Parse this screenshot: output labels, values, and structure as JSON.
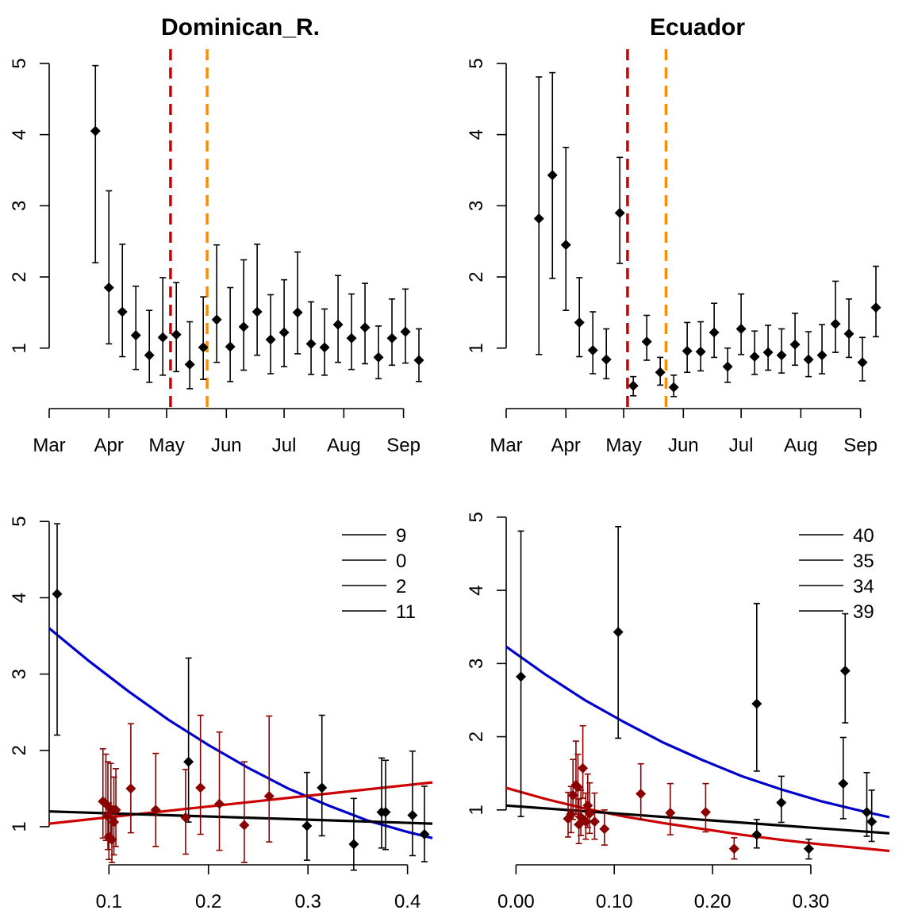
{
  "chart_data": [
    {
      "type": "scatter",
      "title": "Dominican_R.",
      "xlabel": "",
      "ylabel": "",
      "x_axis": "date",
      "xlim": [
        "2020-03-01",
        "2020-09-16"
      ],
      "ylim": [
        0.15,
        5.2
      ],
      "xticks": [
        {
          "label": "Mar",
          "x": "2020-03-01"
        },
        {
          "label": "Apr",
          "x": "2020-04-01"
        },
        {
          "label": "May",
          "x": "2020-05-01"
        },
        {
          "label": "Jun",
          "x": "2020-06-01"
        },
        {
          "label": "Jul",
          "x": "2020-07-01"
        },
        {
          "label": "Aug",
          "x": "2020-08-01"
        },
        {
          "label": "Sep",
          "x": "2020-09-01"
        }
      ],
      "yticks": [
        1,
        2,
        3,
        4,
        5
      ],
      "vlines": [
        {
          "x": "2020-05-03",
          "color": "#cc0000"
        },
        {
          "x": "2020-05-22",
          "color": "#ff8c00"
        }
      ],
      "series": [
        {
          "color": "#000000",
          "points": [
            {
              "x": "2020-03-25",
              "y": 4.05,
              "lo": 2.2,
              "hi": 4.97
            },
            {
              "x": "2020-04-01",
              "y": 1.85,
              "lo": 1.06,
              "hi": 3.21
            },
            {
              "x": "2020-04-08",
              "y": 1.51,
              "lo": 0.88,
              "hi": 2.46
            },
            {
              "x": "2020-04-15",
              "y": 1.18,
              "lo": 0.7,
              "hi": 1.87
            },
            {
              "x": "2020-04-22",
              "y": 0.9,
              "lo": 0.52,
              "hi": 1.53
            },
            {
              "x": "2020-04-29",
              "y": 1.15,
              "lo": 0.62,
              "hi": 1.99
            },
            {
              "x": "2020-05-06",
              "y": 1.19,
              "lo": 0.67,
              "hi": 1.92
            },
            {
              "x": "2020-05-13",
              "y": 0.77,
              "lo": 0.43,
              "hi": 1.37
            },
            {
              "x": "2020-05-20",
              "y": 1.01,
              "lo": 0.56,
              "hi": 1.72
            },
            {
              "x": "2020-05-27",
              "y": 1.4,
              "lo": 0.8,
              "hi": 2.45
            },
            {
              "x": "2020-06-03",
              "y": 1.02,
              "lo": 0.53,
              "hi": 1.85
            },
            {
              "x": "2020-06-10",
              "y": 1.3,
              "lo": 0.69,
              "hi": 2.24
            },
            {
              "x": "2020-06-17",
              "y": 1.51,
              "lo": 0.9,
              "hi": 2.46
            },
            {
              "x": "2020-06-24",
              "y": 1.12,
              "lo": 0.64,
              "hi": 1.75
            },
            {
              "x": "2020-07-01",
              "y": 1.22,
              "lo": 0.74,
              "hi": 1.96
            },
            {
              "x": "2020-07-08",
              "y": 1.5,
              "lo": 0.92,
              "hi": 2.35
            },
            {
              "x": "2020-07-15",
              "y": 1.06,
              "lo": 0.63,
              "hi": 1.65
            },
            {
              "x": "2020-07-22",
              "y": 1.01,
              "lo": 0.62,
              "hi": 1.55
            },
            {
              "x": "2020-07-29",
              "y": 1.33,
              "lo": 0.8,
              "hi": 2.02
            },
            {
              "x": "2020-08-05",
              "y": 1.14,
              "lo": 0.7,
              "hi": 1.76
            },
            {
              "x": "2020-08-12",
              "y": 1.29,
              "lo": 0.78,
              "hi": 1.91
            },
            {
              "x": "2020-08-19",
              "y": 0.87,
              "lo": 0.57,
              "hi": 1.31
            },
            {
              "x": "2020-08-26",
              "y": 1.14,
              "lo": 0.76,
              "hi": 1.69
            },
            {
              "x": "2020-09-02",
              "y": 1.23,
              "lo": 0.79,
              "hi": 1.83
            },
            {
              "x": "2020-09-09",
              "y": 0.83,
              "lo": 0.53,
              "hi": 1.27
            }
          ]
        }
      ]
    },
    {
      "type": "scatter",
      "title": "Ecuador",
      "xlabel": "",
      "ylabel": "",
      "x_axis": "date",
      "xlim": [
        "2020-03-01",
        "2020-09-16"
      ],
      "ylim": [
        0.15,
        5.2
      ],
      "xticks": [
        {
          "label": "Mar",
          "x": "2020-03-01"
        },
        {
          "label": "Apr",
          "x": "2020-04-01"
        },
        {
          "label": "May",
          "x": "2020-05-01"
        },
        {
          "label": "Jun",
          "x": "2020-06-01"
        },
        {
          "label": "Jul",
          "x": "2020-07-01"
        },
        {
          "label": "Aug",
          "x": "2020-08-01"
        },
        {
          "label": "Sep",
          "x": "2020-09-01"
        }
      ],
      "yticks": [
        1,
        2,
        3,
        4,
        5
      ],
      "vlines": [
        {
          "x": "2020-05-03",
          "color": "#cc0000"
        },
        {
          "x": "2020-05-23",
          "color": "#ff8c00"
        }
      ],
      "series": [
        {
          "color": "#000000",
          "points": [
            {
              "x": "2020-03-18",
              "y": 2.82,
              "lo": 0.91,
              "hi": 4.81
            },
            {
              "x": "2020-03-25",
              "y": 3.43,
              "lo": 1.98,
              "hi": 4.87
            },
            {
              "x": "2020-04-01",
              "y": 2.45,
              "lo": 1.53,
              "hi": 3.82
            },
            {
              "x": "2020-04-08",
              "y": 1.36,
              "lo": 0.88,
              "hi": 1.99
            },
            {
              "x": "2020-04-15",
              "y": 0.97,
              "lo": 0.64,
              "hi": 1.51
            },
            {
              "x": "2020-04-22",
              "y": 0.84,
              "lo": 0.57,
              "hi": 1.27
            },
            {
              "x": "2020-04-29",
              "y": 2.9,
              "lo": 2.19,
              "hi": 3.68
            },
            {
              "x": "2020-05-06",
              "y": 0.47,
              "lo": 0.33,
              "hi": 0.6
            },
            {
              "x": "2020-05-13",
              "y": 1.09,
              "lo": 0.83,
              "hi": 1.46
            },
            {
              "x": "2020-05-20",
              "y": 0.66,
              "lo": 0.48,
              "hi": 0.87
            },
            {
              "x": "2020-05-27",
              "y": 0.45,
              "lo": 0.32,
              "hi": 0.62
            },
            {
              "x": "2020-06-03",
              "y": 0.96,
              "lo": 0.66,
              "hi": 1.36
            },
            {
              "x": "2020-06-10",
              "y": 0.95,
              "lo": 0.68,
              "hi": 1.37
            },
            {
              "x": "2020-06-17",
              "y": 1.22,
              "lo": 0.87,
              "hi": 1.63
            },
            {
              "x": "2020-06-24",
              "y": 0.74,
              "lo": 0.52,
              "hi": 1.0
            },
            {
              "x": "2020-07-01",
              "y": 1.27,
              "lo": 0.91,
              "hi": 1.76
            },
            {
              "x": "2020-07-08",
              "y": 0.88,
              "lo": 0.63,
              "hi": 1.24
            },
            {
              "x": "2020-07-15",
              "y": 0.94,
              "lo": 0.69,
              "hi": 1.32
            },
            {
              "x": "2020-07-22",
              "y": 0.9,
              "lo": 0.65,
              "hi": 1.27
            },
            {
              "x": "2020-07-29",
              "y": 1.05,
              "lo": 0.76,
              "hi": 1.49
            },
            {
              "x": "2020-08-05",
              "y": 0.84,
              "lo": 0.6,
              "hi": 1.23
            },
            {
              "x": "2020-08-12",
              "y": 0.9,
              "lo": 0.64,
              "hi": 1.33
            },
            {
              "x": "2020-08-19",
              "y": 1.34,
              "lo": 0.94,
              "hi": 1.94
            },
            {
              "x": "2020-08-26",
              "y": 1.2,
              "lo": 0.87,
              "hi": 1.69
            },
            {
              "x": "2020-09-02",
              "y": 0.8,
              "lo": 0.54,
              "hi": 1.15
            },
            {
              "x": "2020-09-09",
              "y": 1.57,
              "lo": 1.16,
              "hi": 2.15
            }
          ]
        }
      ]
    },
    {
      "type": "scatter",
      "title": "",
      "xlabel": "",
      "ylabel": "",
      "xlim": [
        0.04,
        0.425
      ],
      "ylim": [
        0.5,
        5.2
      ],
      "xticks": [
        0.1,
        0.2,
        0.3,
        0.4
      ],
      "xtick_decimals": 1,
      "yticks": [
        1,
        2,
        3,
        4,
        5
      ],
      "legend": {
        "position": "top-right",
        "labels": [
          "9",
          "0",
          "2",
          "11"
        ]
      },
      "series": [
        {
          "color": "#000000",
          "points": [
            {
              "x": 0.048,
              "y": 4.05,
              "lo": 2.2,
              "hi": 4.97
            },
            {
              "x": 0.18,
              "y": 1.85,
              "lo": 1.06,
              "hi": 3.21
            },
            {
              "x": 0.299,
              "y": 1.01,
              "lo": 0.56,
              "hi": 1.71
            },
            {
              "x": 0.314,
              "y": 1.51,
              "lo": 0.88,
              "hi": 2.46
            },
            {
              "x": 0.346,
              "y": 0.77,
              "lo": 0.43,
              "hi": 1.37
            },
            {
              "x": 0.374,
              "y": 1.19,
              "lo": 0.72,
              "hi": 1.9
            },
            {
              "x": 0.378,
              "y": 1.19,
              "lo": 0.7,
              "hi": 1.87
            },
            {
              "x": 0.405,
              "y": 1.15,
              "lo": 0.62,
              "hi": 1.99
            },
            {
              "x": 0.417,
              "y": 0.9,
              "lo": 0.54,
              "hi": 1.53
            }
          ]
        },
        {
          "color": "#8b0000",
          "points": [
            {
              "x": 0.094,
              "y": 1.33,
              "lo": 0.85,
              "hi": 2.02
            },
            {
              "x": 0.097,
              "y": 1.3,
              "lo": 0.82,
              "hi": 1.95
            },
            {
              "x": 0.099,
              "y": 1.14,
              "lo": 0.7,
              "hi": 1.85
            },
            {
              "x": 0.1,
              "y": 0.87,
              "lo": 0.57,
              "hi": 1.31
            },
            {
              "x": 0.102,
              "y": 1.23,
              "lo": 0.79,
              "hi": 1.83
            },
            {
              "x": 0.103,
              "y": 0.83,
              "lo": 0.53,
              "hi": 1.27
            },
            {
              "x": 0.105,
              "y": 1.06,
              "lo": 0.63,
              "hi": 1.65
            },
            {
              "x": 0.107,
              "y": 1.22,
              "lo": 0.74,
              "hi": 1.76
            },
            {
              "x": 0.122,
              "y": 1.5,
              "lo": 0.92,
              "hi": 2.35
            },
            {
              "x": 0.147,
              "y": 1.22,
              "lo": 0.74,
              "hi": 1.96
            },
            {
              "x": 0.177,
              "y": 1.12,
              "lo": 0.64,
              "hi": 1.75
            },
            {
              "x": 0.192,
              "y": 1.51,
              "lo": 0.9,
              "hi": 2.46
            },
            {
              "x": 0.211,
              "y": 1.3,
              "lo": 0.69,
              "hi": 2.24
            },
            {
              "x": 0.236,
              "y": 1.02,
              "lo": 0.53,
              "hi": 1.85
            },
            {
              "x": 0.261,
              "y": 1.4,
              "lo": 0.8,
              "hi": 2.45
            }
          ]
        }
      ],
      "curves": [
        {
          "color": "#0000cd",
          "x": [
            0.04,
            0.08,
            0.12,
            0.16,
            0.2,
            0.24,
            0.28,
            0.32,
            0.36,
            0.4,
            0.425
          ],
          "y": [
            3.6,
            3.17,
            2.77,
            2.4,
            2.07,
            1.77,
            1.5,
            1.28,
            1.08,
            0.93,
            0.85
          ]
        },
        {
          "color": "#cc0000",
          "x": [
            0.04,
            0.425
          ],
          "y": [
            1.04,
            1.58
          ]
        },
        {
          "color": "#000000",
          "x": [
            0.04,
            0.425
          ],
          "y": [
            1.2,
            1.04
          ]
        }
      ]
    },
    {
      "type": "scatter",
      "title": "",
      "xlabel": "",
      "ylabel": "",
      "xlim": [
        -0.01,
        0.38
      ],
      "ylim": [
        0.25,
        5.15
      ],
      "xticks": [
        0.0,
        0.1,
        0.2,
        0.3
      ],
      "xtick_decimals": 2,
      "yticks": [
        1,
        2,
        3,
        4,
        5
      ],
      "legend": {
        "position": "top-right",
        "labels": [
          "40",
          "35",
          "34",
          "39"
        ]
      },
      "series": [
        {
          "color": "#000000",
          "points": [
            {
              "x": 0.005,
              "y": 2.82,
              "lo": 0.91,
              "hi": 4.81
            },
            {
              "x": 0.104,
              "y": 3.43,
              "lo": 1.98,
              "hi": 4.87
            },
            {
              "x": 0.245,
              "y": 2.45,
              "lo": 1.53,
              "hi": 3.82
            },
            {
              "x": 0.245,
              "y": 0.66,
              "lo": 0.48,
              "hi": 0.87
            },
            {
              "x": 0.27,
              "y": 1.1,
              "lo": 0.83,
              "hi": 1.46
            },
            {
              "x": 0.298,
              "y": 0.47,
              "lo": 0.33,
              "hi": 0.6
            },
            {
              "x": 0.333,
              "y": 1.36,
              "lo": 0.88,
              "hi": 1.99
            },
            {
              "x": 0.335,
              "y": 2.9,
              "lo": 2.19,
              "hi": 3.68
            },
            {
              "x": 0.357,
              "y": 0.97,
              "lo": 0.64,
              "hi": 1.51
            },
            {
              "x": 0.362,
              "y": 0.84,
              "lo": 0.57,
              "hi": 1.27
            }
          ]
        },
        {
          "color": "#8b0000",
          "points": [
            {
              "x": 0.053,
              "y": 0.88,
              "lo": 0.63,
              "hi": 1.24
            },
            {
              "x": 0.056,
              "y": 0.94,
              "lo": 0.69,
              "hi": 1.32
            },
            {
              "x": 0.058,
              "y": 1.2,
              "lo": 0.87,
              "hi": 1.69
            },
            {
              "x": 0.061,
              "y": 1.34,
              "lo": 0.94,
              "hi": 1.94
            },
            {
              "x": 0.063,
              "y": 1.31,
              "lo": 0.91,
              "hi": 1.76
            },
            {
              "x": 0.064,
              "y": 0.8,
              "lo": 0.54,
              "hi": 1.15
            },
            {
              "x": 0.066,
              "y": 0.9,
              "lo": 0.65,
              "hi": 1.27
            },
            {
              "x": 0.068,
              "y": 1.57,
              "lo": 1.16,
              "hi": 2.15
            },
            {
              "x": 0.071,
              "y": 0.84,
              "lo": 0.6,
              "hi": 1.23
            },
            {
              "x": 0.073,
              "y": 1.06,
              "lo": 0.76,
              "hi": 1.49
            },
            {
              "x": 0.075,
              "y": 0.95,
              "lo": 0.68,
              "hi": 1.37
            },
            {
              "x": 0.08,
              "y": 0.84,
              "lo": 0.6,
              "hi": 1.23
            },
            {
              "x": 0.09,
              "y": 0.74,
              "lo": 0.52,
              "hi": 1.0
            },
            {
              "x": 0.127,
              "y": 1.22,
              "lo": 0.87,
              "hi": 1.63
            },
            {
              "x": 0.157,
              "y": 0.96,
              "lo": 0.66,
              "hi": 1.36
            },
            {
              "x": 0.193,
              "y": 0.97,
              "lo": 0.7,
              "hi": 1.36
            },
            {
              "x": 0.222,
              "y": 0.47,
              "lo": 0.33,
              "hi": 0.62
            }
          ]
        }
      ],
      "curves": [
        {
          "color": "#0000cd",
          "x": [
            -0.01,
            0.03,
            0.07,
            0.11,
            0.15,
            0.19,
            0.23,
            0.27,
            0.31,
            0.35,
            0.38
          ],
          "y": [
            3.23,
            2.85,
            2.5,
            2.2,
            1.92,
            1.68,
            1.46,
            1.28,
            1.12,
            0.99,
            0.9
          ]
        },
        {
          "color": "#cc0000",
          "x": [
            -0.01,
            0.03,
            0.07,
            0.11,
            0.15,
            0.19,
            0.23,
            0.27,
            0.31,
            0.35,
            0.38
          ],
          "y": [
            1.3,
            1.15,
            1.02,
            0.91,
            0.82,
            0.74,
            0.66,
            0.59,
            0.53,
            0.48,
            0.44
          ]
        },
        {
          "color": "#000000",
          "x": [
            -0.01,
            0.38
          ],
          "y": [
            1.06,
            0.68
          ]
        }
      ]
    }
  ]
}
